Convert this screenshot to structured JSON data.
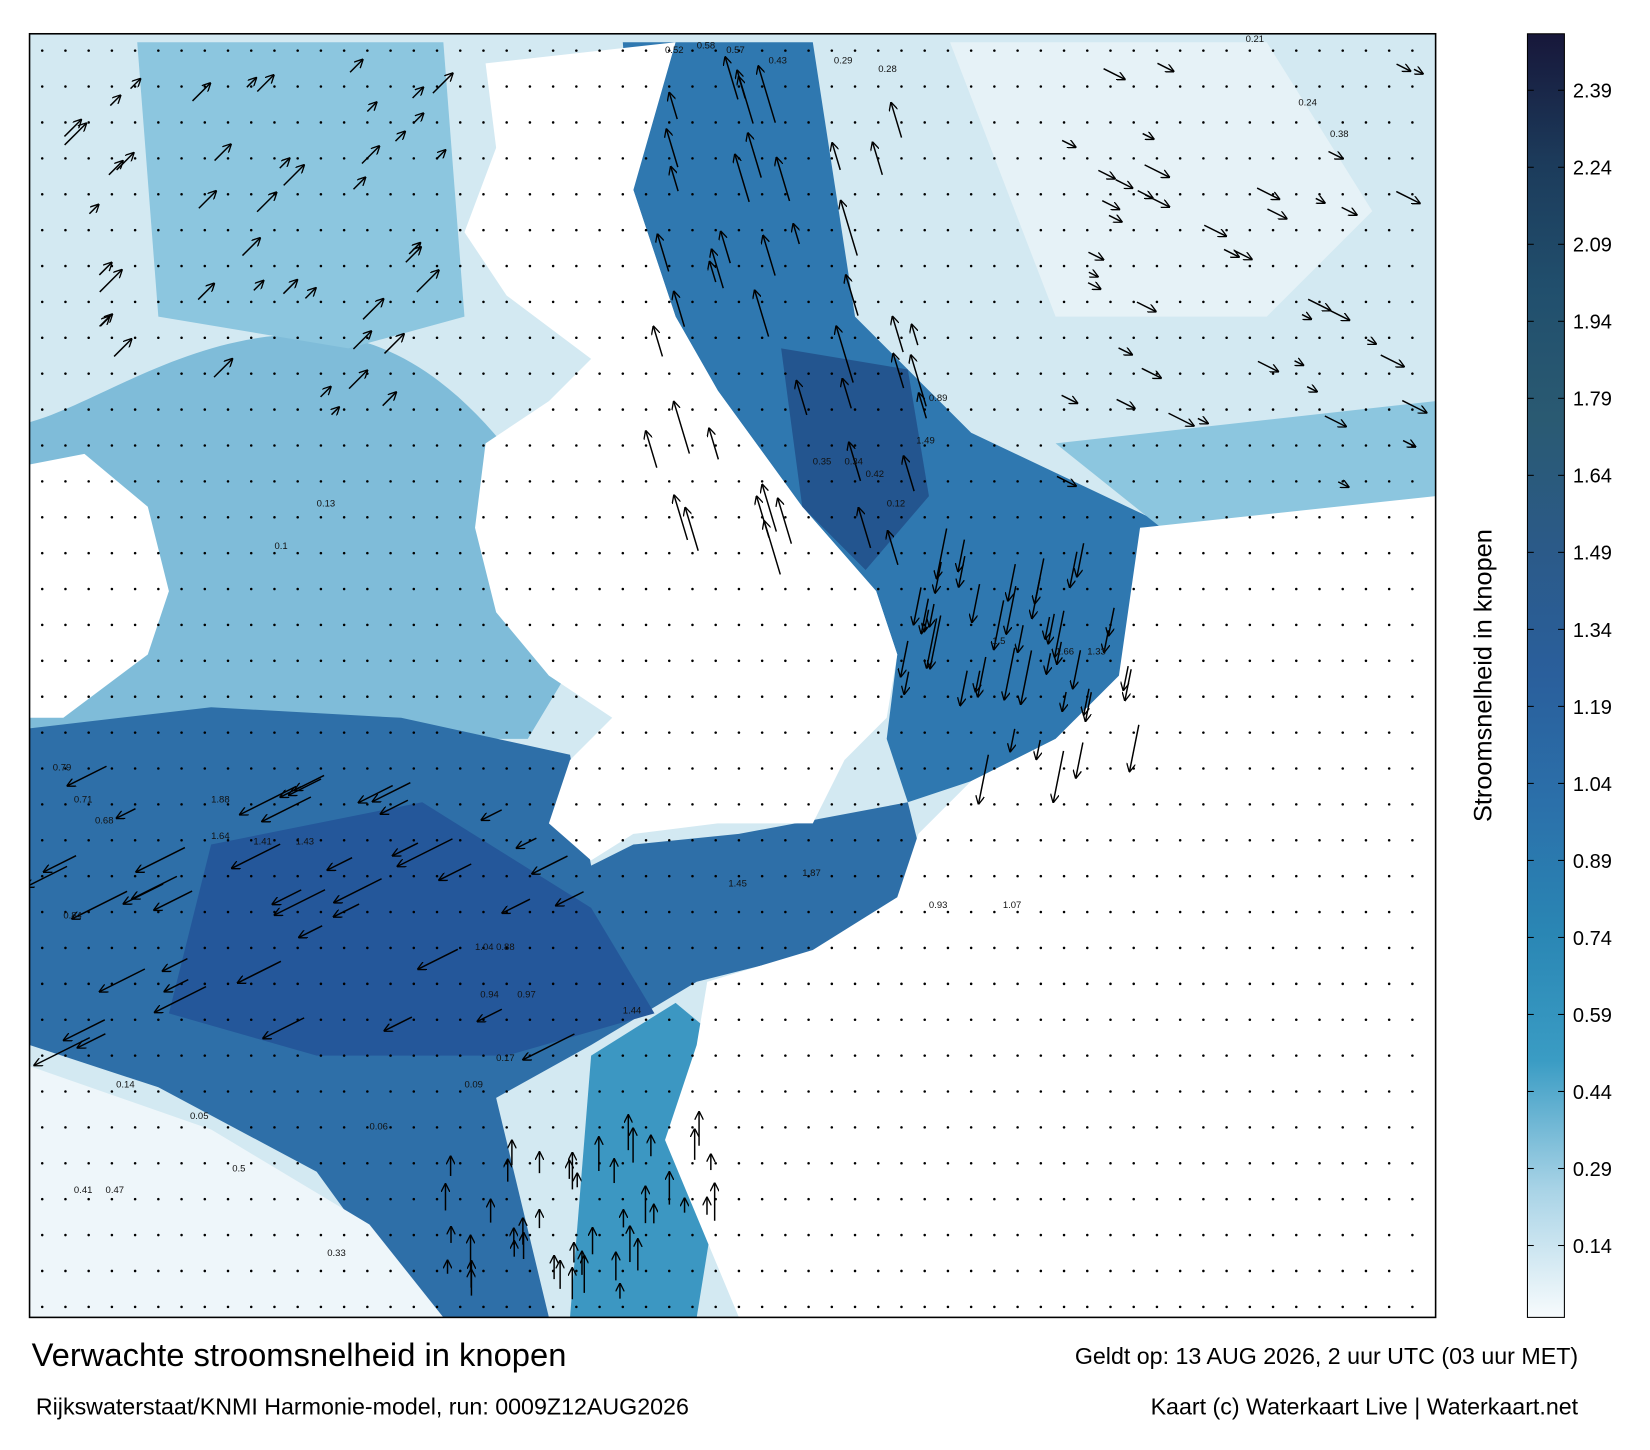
{
  "title": "Verwachte stroomsnelheid in knopen",
  "subtitle": "Rijkswaterstaat/KNMI Harmonie-model, run: 0009Z12AUG2026",
  "valid_time": "Geldt op: 13 AUG 2026, 2 uur UTC (03 uur MET)",
  "credit": "Kaart (c) Waterkaart Live | Waterkaart.net",
  "legend": {
    "title": "Stroomsnelheid in knopen",
    "lim": [
      0,
      2.5
    ],
    "ticks": [
      0.14,
      0.29,
      0.44,
      0.59,
      0.74,
      0.89,
      1.04,
      1.19,
      1.34,
      1.49,
      1.64,
      1.79,
      1.94,
      2.09,
      2.24,
      2.39
    ],
    "colors": [
      "#f7fbfd",
      "#a8d3e6",
      "#3a9cc4",
      "#2a86b4",
      "#2b70aa",
      "#2a5f9c",
      "#2b5a88",
      "#2a5a72",
      "#214f6d",
      "#1c3b5b",
      "#17173a"
    ]
  },
  "speed_labels": [
    "0.52",
    "0.58",
    "0.57",
    "0.43",
    "0.29",
    "0.28",
    "0.21",
    "0.35",
    "0.34",
    "0.42",
    "0.12",
    "1.49",
    "1.5",
    "1.66",
    "1.33",
    "0.89",
    "0.93",
    "1.07",
    "1.04",
    "0.88",
    "0.94",
    "0.97",
    "1.44",
    "1.45",
    "1.87",
    "1.88",
    "1.64",
    "1.41",
    "1.43",
    "0.68",
    "0.71",
    "0.79",
    "0.84",
    "0.5",
    "0.47",
    "0.41",
    "0.33",
    "0.17",
    "0.09",
    "0.06",
    "0.05",
    "0.14",
    "0.24",
    "0.38",
    "0.13",
    "0.1"
  ]
}
